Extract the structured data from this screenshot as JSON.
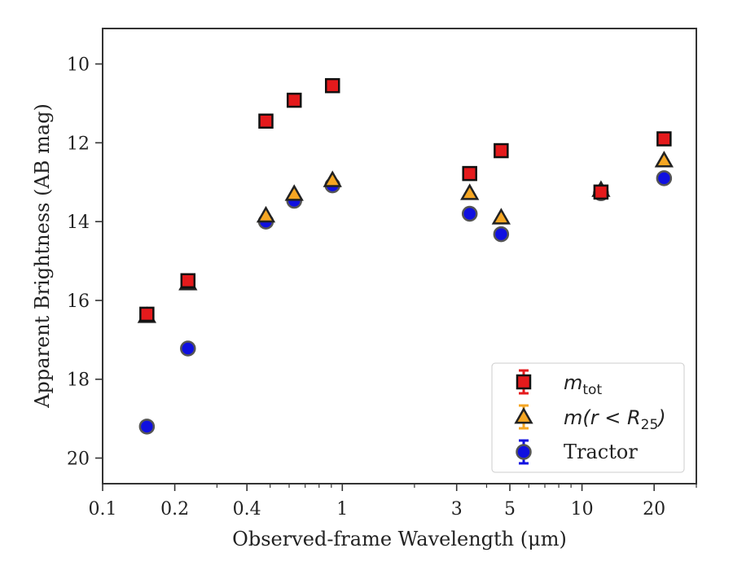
{
  "chart_data": {
    "type": "scatter",
    "title": "",
    "xlabel": "Observed-frame Wavelength (μm)",
    "ylabel": "Apparent Brightness (AB mag)",
    "xscale": "log",
    "yaxis_inverted": true,
    "xlim": [
      0.1,
      30
    ],
    "ylim": [
      20.65,
      9.1
    ],
    "x_ticks": [
      0.1,
      0.2,
      0.4,
      1,
      3,
      5,
      10,
      20
    ],
    "x_tick_labels": [
      "0.1",
      "0.2",
      "0.4",
      "1",
      "3",
      "5",
      "10",
      "20"
    ],
    "y_ticks": [
      10,
      12,
      14,
      16,
      18,
      20
    ],
    "y_tick_labels": [
      "10",
      "12",
      "14",
      "16",
      "18",
      "20"
    ],
    "grid": false,
    "legend_position": "lower-right",
    "series": [
      {
        "key": "mtot",
        "marker": "square",
        "color": "#e41a1c",
        "x": [
          0.153,
          0.227,
          0.48,
          0.63,
          0.91,
          3.4,
          4.6,
          12,
          22
        ],
        "y": [
          16.35,
          15.5,
          11.45,
          10.92,
          10.55,
          12.78,
          12.2,
          13.25,
          11.9
        ]
      },
      {
        "key": "mr25",
        "marker": "triangle",
        "color": "#f5a623",
        "x": [
          0.153,
          0.227,
          0.48,
          0.63,
          0.91,
          3.4,
          4.6,
          12,
          22
        ],
        "y": [
          16.4,
          15.57,
          13.85,
          13.3,
          12.95,
          13.28,
          13.9,
          13.2,
          12.45
        ]
      },
      {
        "key": "tractor",
        "marker": "circle",
        "color": "#1010e0",
        "x": [
          0.153,
          0.227,
          0.48,
          0.63,
          0.91,
          3.4,
          4.6,
          12,
          22
        ],
        "y": [
          19.2,
          17.22,
          14.0,
          13.47,
          13.08,
          13.8,
          14.32,
          13.28,
          12.9
        ]
      }
    ],
    "legend": {
      "mtot": {
        "base": "m",
        "sub": "tot"
      },
      "mr25": {
        "prefix": "m(r < R",
        "sub": "25",
        "suffix": ")"
      },
      "tractor": {
        "label": "Tractor"
      }
    }
  }
}
